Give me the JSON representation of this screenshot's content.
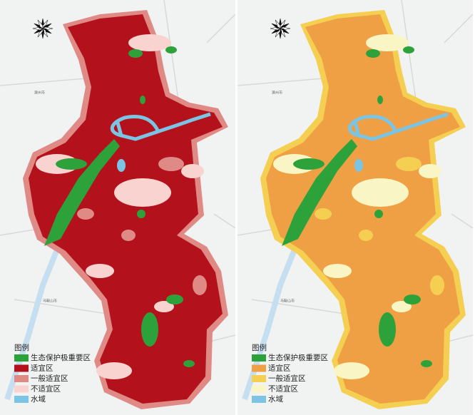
{
  "maps": [
    {
      "place_labels": [
        "滁州市",
        "马鞍山市"
      ],
      "legend": {
        "title": "图例",
        "items": [
          {
            "label": "生态保护极重要区",
            "color": "#2ea23a"
          },
          {
            "label": "适宜区",
            "color": "#b3121c"
          },
          {
            "label": "一般适宜区",
            "color": "#e08a86"
          },
          {
            "label": "不适宜区",
            "color": "#f9d3d0"
          },
          {
            "label": "水域",
            "color": "#7cc4e4"
          }
        ]
      }
    },
    {
      "place_labels": [
        "滁州市",
        "马鞍山市"
      ],
      "legend": {
        "title": "图例",
        "items": [
          {
            "label": "生态保护极重要区",
            "color": "#2ea23a"
          },
          {
            "label": "适宜区",
            "color": "#f0a044"
          },
          {
            "label": "一般适宜区",
            "color": "#f4cf52"
          },
          {
            "label": "不适宜区",
            "color": "#f9f5c4"
          },
          {
            "label": "水域",
            "color": "#7cc4e4"
          }
        ]
      }
    }
  ]
}
